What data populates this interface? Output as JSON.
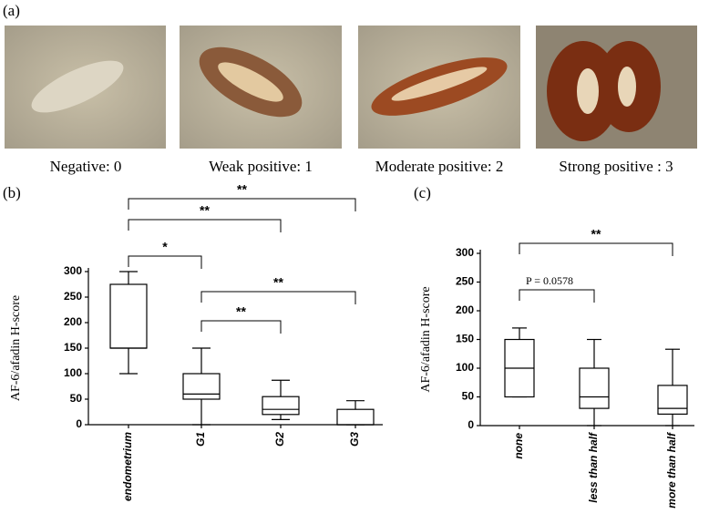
{
  "panel_labels": [
    "(a)",
    "(b)",
    "(c)"
  ],
  "images": [
    {
      "caption": "Negative: 0"
    },
    {
      "caption": "Weak positive: 1"
    },
    {
      "caption": "Moderate positive: 2"
    },
    {
      "caption": "Strong positive : 3"
    }
  ],
  "chart_data": [
    {
      "type": "box",
      "ylabel": "AF-6/afadin H-score",
      "categories": [
        "endometrium",
        "G1",
        "G2",
        "G3"
      ],
      "boxes": [
        {
          "whislo": 100,
          "q1": 150,
          "med": 150,
          "q3": 275,
          "whishi": 300
        },
        {
          "whislo": 0,
          "q1": 50,
          "med": 60,
          "q3": 100,
          "whishi": 150
        },
        {
          "whislo": 10,
          "q1": 20,
          "med": 30,
          "q3": 55,
          "whishi": 87
        },
        {
          "whislo": 0,
          "q1": 0,
          "med": 0,
          "q3": 30,
          "whishi": 47
        }
      ],
      "ylim": [
        0,
        300
      ],
      "yticks": [
        0,
        50,
        100,
        150,
        200,
        250,
        300
      ],
      "comparisons": [
        {
          "between": [
            0,
            3
          ],
          "label": "**"
        },
        {
          "between": [
            0,
            2
          ],
          "label": "**"
        },
        {
          "between": [
            0,
            1
          ],
          "label": "*"
        },
        {
          "between": [
            1,
            3
          ],
          "label": "**"
        },
        {
          "between": [
            1,
            2
          ],
          "label": "**"
        }
      ]
    },
    {
      "type": "box",
      "ylabel": "AF-6/afadin H-score",
      "categories": [
        "none",
        "less than half",
        "more than half"
      ],
      "boxes": [
        {
          "whislo": 50,
          "q1": 50,
          "med": 100,
          "q3": 150,
          "whishi": 170
        },
        {
          "whislo": 0,
          "q1": 30,
          "med": 50,
          "q3": 100,
          "whishi": 150
        },
        {
          "whislo": 0,
          "q1": 20,
          "med": 30,
          "q3": 70,
          "whishi": 133
        }
      ],
      "ylim": [
        0,
        300
      ],
      "yticks": [
        0,
        50,
        100,
        150,
        200,
        250,
        300
      ],
      "comparisons": [
        {
          "between": [
            0,
            2
          ],
          "label": "**"
        },
        {
          "between": [
            0,
            1
          ],
          "label": "P = 0.0578"
        }
      ]
    }
  ]
}
